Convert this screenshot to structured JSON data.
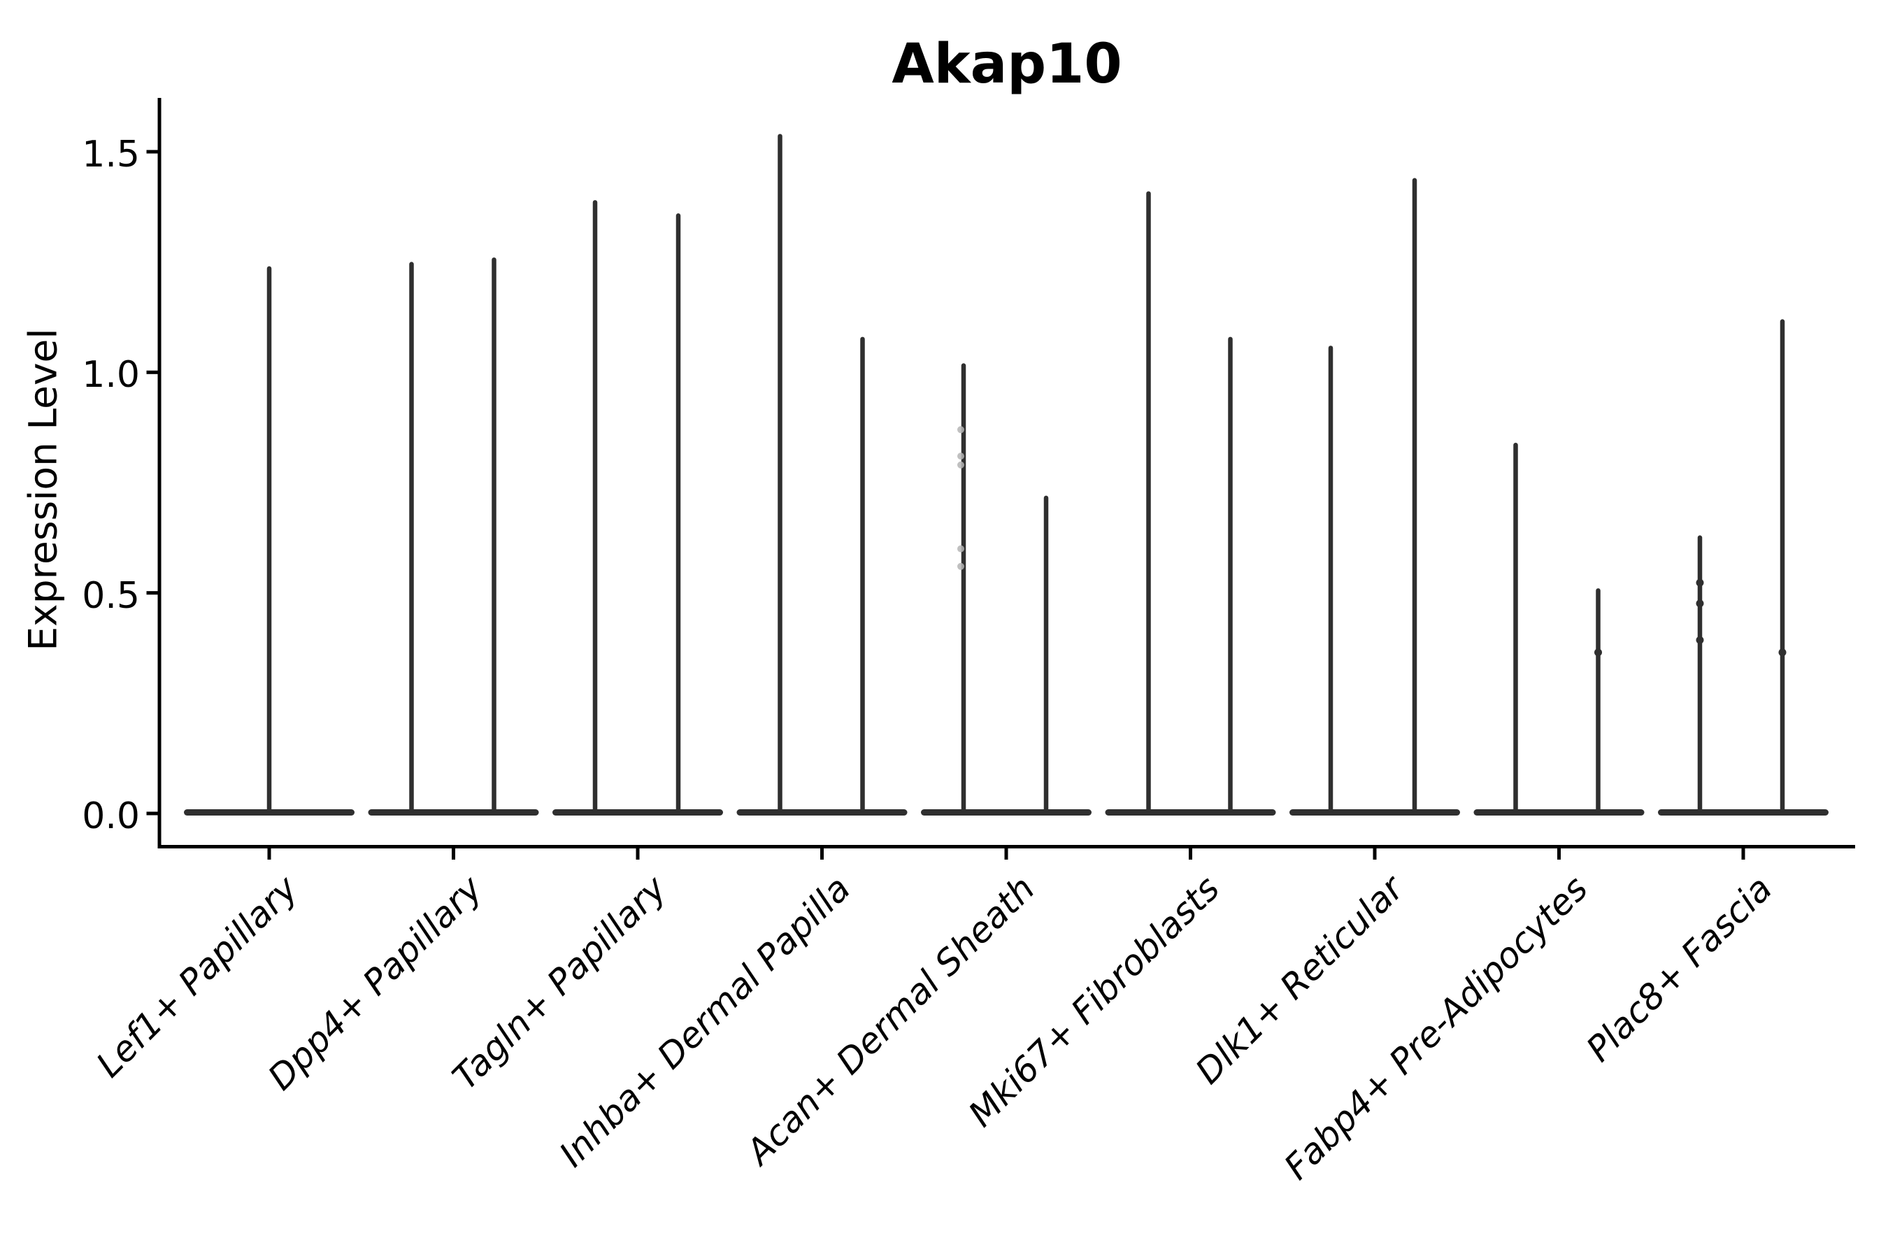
{
  "chart_data": {
    "type": "violin",
    "title": "Akap10",
    "xlabel": "",
    "ylabel": "Expression Level",
    "ylim": [
      -0.075,
      1.62
    ],
    "grid": false,
    "legend": null,
    "yticks": [
      {
        "value": 0.0,
        "label": "0.0"
      },
      {
        "value": 0.5,
        "label": "0.5"
      },
      {
        "value": 1.0,
        "label": "1.0"
      },
      {
        "value": 1.5,
        "label": "1.5"
      }
    ],
    "categories": [
      "Lef1+ Papillary",
      "Dpp4+ Papillary",
      "Tagln+ Papillary",
      "Inhba+ Dermal Papilla",
      "Acan+ Dermal Sheath",
      "Mki67+ Fibroblasts",
      "Dlk1+ Reticular",
      "Fabp4+ Pre-Adipocytes",
      "Plac8+ Fascia"
    ],
    "violins": [
      {
        "category": "Lef1+ Papillary",
        "base_value": 0,
        "spikes": [
          {
            "dx": 0,
            "max": 1.24
          }
        ]
      },
      {
        "category": "Dpp4+ Papillary",
        "base_value": 0,
        "spikes": [
          {
            "dx": -60,
            "max": 1.25
          },
          {
            "dx": 58,
            "max": 1.26
          }
        ]
      },
      {
        "category": "Tagln+ Papillary",
        "base_value": 0,
        "spikes": [
          {
            "dx": -61,
            "max": 1.39
          },
          {
            "dx": 58,
            "max": 1.36
          }
        ]
      },
      {
        "category": "Inhba+ Dermal Papilla",
        "base_value": 0,
        "spikes": [
          {
            "dx": -60,
            "max": 1.54
          },
          {
            "dx": 58,
            "max": 1.08
          }
        ]
      },
      {
        "category": "Acan+ Dermal Sheath",
        "base_value": 0,
        "spikes": [
          {
            "dx": -61,
            "max": 1.02
          },
          {
            "dx": 57,
            "max": 0.72
          }
        ]
      },
      {
        "category": "Mki67+ Fibroblasts",
        "base_value": 0,
        "spikes": [
          {
            "dx": -60,
            "max": 1.41
          },
          {
            "dx": 57,
            "max": 1.08
          }
        ]
      },
      {
        "category": "Dlk1+ Reticular",
        "base_value": 0,
        "spikes": [
          {
            "dx": -63,
            "max": 1.06
          },
          {
            "dx": 57,
            "max": 1.44
          }
        ]
      },
      {
        "category": "Fabp4+ Pre-Adipocytes",
        "base_value": 0,
        "spikes": [
          {
            "dx": -62,
            "max": 0.84
          },
          {
            "dx": 56,
            "max": 0.51
          }
        ]
      },
      {
        "category": "Plac8+ Fascia",
        "base_value": 0,
        "spikes": [
          {
            "dx": -62,
            "max": 0.63
          },
          {
            "dx": 56,
            "max": 1.12
          }
        ]
      }
    ],
    "points": {
      "dark": [
        {
          "cat": 7,
          "dx": 56,
          "value": 0.365
        },
        {
          "cat": 8,
          "dx": -62,
          "value": 0.523
        },
        {
          "cat": 8,
          "dx": -62,
          "value": 0.476
        },
        {
          "cat": 8,
          "dx": -62,
          "value": 0.393
        },
        {
          "cat": 8,
          "dx": 56,
          "value": 0.365
        }
      ],
      "light": [
        {
          "cat": 4,
          "dx": -61,
          "value": 0.87
        },
        {
          "cat": 4,
          "dx": -61,
          "value": 0.81
        },
        {
          "cat": 4,
          "dx": -61,
          "value": 0.79
        },
        {
          "cat": 4,
          "dx": -61,
          "value": 0.6
        },
        {
          "cat": 4,
          "dx": -61,
          "value": 0.56
        }
      ]
    },
    "colors": {
      "violin": "#2f2f2f",
      "axis": "#000000",
      "text": "#000000",
      "background": "#ffffff",
      "light_point": "#b5b5b5"
    }
  }
}
